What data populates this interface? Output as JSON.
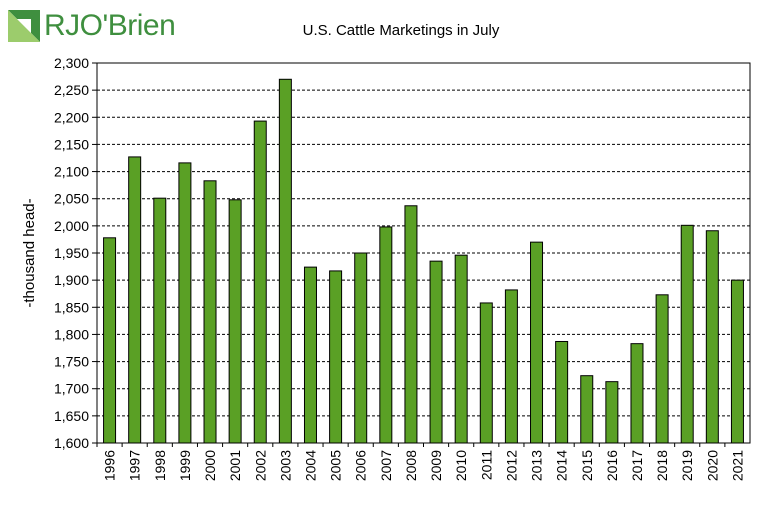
{
  "brand": {
    "name": "RJO'Brien",
    "colors": {
      "green": "#3f8f3f",
      "light_green": "#9ccc6c"
    }
  },
  "chart_data": {
    "type": "bar",
    "title": "U.S. Cattle Marketings  in July",
    "xlabel": "",
    "ylabel": "-thousand head-",
    "ylim": [
      1600,
      2300
    ],
    "ytick_step": 50,
    "grid": true,
    "bar_color": "#5aa025",
    "bar_edge_color": "#000000",
    "categories": [
      "1996",
      "1997",
      "1998",
      "1999",
      "2000",
      "2001",
      "2002",
      "2003",
      "2004",
      "2005",
      "2006",
      "2007",
      "2008",
      "2009",
      "2010",
      "2011",
      "2012",
      "2013",
      "2014",
      "2015",
      "2016",
      "2017",
      "2018",
      "2019",
      "2020",
      "2021"
    ],
    "values": [
      1978,
      2127,
      2051,
      2116,
      2083,
      2048,
      2193,
      2270,
      1924,
      1917,
      1950,
      1998,
      2037,
      1935,
      1946,
      1858,
      1882,
      1970,
      1787,
      1724,
      1713,
      1783,
      1873,
      2001,
      1991,
      1900
    ],
    "ytick_labels": [
      "1,600",
      "1,650",
      "1,700",
      "1,750",
      "1,800",
      "1,850",
      "1,900",
      "1,950",
      "2,000",
      "2,050",
      "2,100",
      "2,150",
      "2,200",
      "2,250",
      "2,300"
    ]
  }
}
